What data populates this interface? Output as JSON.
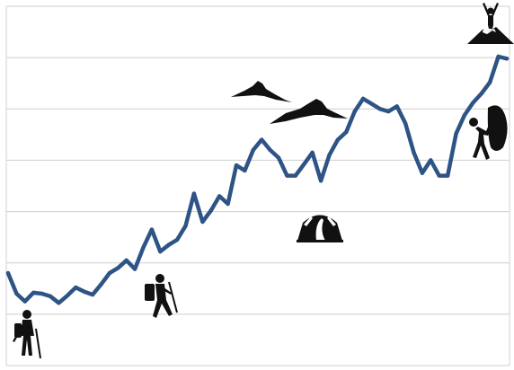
{
  "chart_data": {
    "type": "line",
    "title": "",
    "xlabel": "",
    "ylabel": "",
    "grid": true,
    "ylim": [
      0,
      7
    ],
    "x": [
      0,
      1,
      2,
      3,
      4,
      5,
      6,
      7,
      8,
      9,
      10,
      11,
      12,
      13,
      14,
      15,
      16,
      17,
      18,
      19,
      20,
      21,
      22,
      23,
      24,
      25,
      26,
      27,
      28,
      29,
      30,
      31,
      32,
      33,
      34,
      35,
      36,
      37,
      38,
      39,
      40,
      41,
      42,
      43,
      44,
      45,
      46,
      47,
      48,
      49,
      50,
      51,
      52,
      53,
      54,
      55,
      56,
      57,
      58,
      59
    ],
    "series": [
      {
        "values": [
          1.8,
          1.4,
          1.25,
          1.42,
          1.4,
          1.35,
          1.22,
          1.36,
          1.52,
          1.44,
          1.38,
          1.58,
          1.8,
          1.9,
          2.05,
          1.88,
          2.3,
          2.65,
          2.22,
          2.35,
          2.45,
          2.72,
          3.35,
          2.8,
          3.02,
          3.3,
          3.15,
          3.9,
          3.8,
          4.2,
          4.4,
          4.2,
          4.05,
          3.7,
          3.7,
          3.92,
          4.15,
          3.6,
          4.1,
          4.4,
          4.55,
          4.95,
          5.2,
          5.1,
          5.0,
          4.95,
          5.05,
          4.72,
          4.15,
          3.75,
          4.0,
          3.7,
          3.7,
          4.52,
          4.88,
          5.12,
          5.3,
          5.52,
          6.02,
          5.98
        ]
      }
    ]
  },
  "icons": {
    "hiker_start": "hiker-with-trekking-poles-icon",
    "hiker_walking": "hiker-with-backpack-icon",
    "camp": "tent-icon",
    "mountains": "mountain-range-icon",
    "climber": "rock-climber-icon",
    "summit": "summit-celebration-icon"
  },
  "colors": {
    "line": "#2e5485",
    "grid": "#cfcfcf",
    "icons": "#111111"
  }
}
